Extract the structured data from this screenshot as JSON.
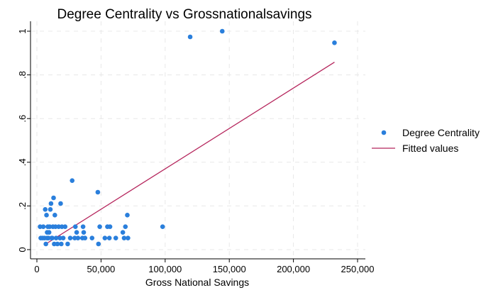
{
  "chart_data": {
    "type": "scatter",
    "title": "Degree Centrality vs Grossnationalsavings",
    "xlabel": "Gross National Savings",
    "ylabel": "",
    "xlim": [
      0,
      255000
    ],
    "ylim": [
      0,
      1.0
    ],
    "x_ticks": [
      0,
      50000,
      100000,
      150000,
      200000,
      250000
    ],
    "x_tick_labels": [
      "0",
      "50,000",
      "100,000",
      "150,000",
      "200,000",
      "250,000"
    ],
    "y_ticks": [
      0,
      0.2,
      0.4,
      0.6,
      0.8,
      1.0
    ],
    "y_tick_labels": [
      "0",
      ".2",
      ".4",
      ".6",
      ".8",
      "1"
    ],
    "grid": true,
    "legend_position": "right",
    "colors": {
      "points": "#2a7fdc",
      "fit_line": "#b5255c"
    },
    "series": [
      {
        "name": "Degree Centrality",
        "kind": "scatter",
        "points": [
          [
            2500,
            0.105
          ],
          [
            3000,
            0.053
          ],
          [
            4500,
            0.053
          ],
          [
            5000,
            0.105
          ],
          [
            6000,
            0.053
          ],
          [
            6500,
            0.184
          ],
          [
            7000,
            0.026
          ],
          [
            7500,
            0.158
          ],
          [
            8000,
            0.079
          ],
          [
            8000,
            0.053
          ],
          [
            8500,
            0.105
          ],
          [
            9000,
            0.053
          ],
          [
            9500,
            0.079
          ],
          [
            10000,
            0.105
          ],
          [
            10500,
            0.184
          ],
          [
            11000,
            0.211
          ],
          [
            11500,
            0.053
          ],
          [
            12000,
            0.053
          ],
          [
            12500,
            0.105
          ],
          [
            13000,
            0.237
          ],
          [
            13500,
            0.026
          ],
          [
            14000,
            0.158
          ],
          [
            14500,
            0.105
          ],
          [
            15000,
            0.053
          ],
          [
            16000,
            0.026
          ],
          [
            17000,
            0.105
          ],
          [
            18000,
            0.053
          ],
          [
            18500,
            0.211
          ],
          [
            19000,
            0.026
          ],
          [
            19500,
            0.105
          ],
          [
            20500,
            0.053
          ],
          [
            22000,
            0.105
          ],
          [
            24000,
            0.026
          ],
          [
            26000,
            0.053
          ],
          [
            27500,
            0.316
          ],
          [
            29500,
            0.053
          ],
          [
            30000,
            0.105
          ],
          [
            31000,
            0.079
          ],
          [
            32000,
            0.053
          ],
          [
            35500,
            0.053
          ],
          [
            36000,
            0.105
          ],
          [
            36500,
            0.079
          ],
          [
            37500,
            0.053
          ],
          [
            43000,
            0.053
          ],
          [
            47500,
            0.263
          ],
          [
            48000,
            0.026
          ],
          [
            49000,
            0.105
          ],
          [
            53000,
            0.053
          ],
          [
            55000,
            0.105
          ],
          [
            56500,
            0.053
          ],
          [
            57000,
            0.105
          ],
          [
            61500,
            0.053
          ],
          [
            67000,
            0.079
          ],
          [
            68000,
            0.053
          ],
          [
            69000,
            0.105
          ],
          [
            70500,
            0.158
          ],
          [
            71000,
            0.053
          ],
          [
            98000,
            0.105
          ],
          [
            119500,
            0.974
          ],
          [
            144500,
            1.0
          ],
          [
            232000,
            0.947
          ]
        ]
      },
      {
        "name": "Fitted values",
        "kind": "line",
        "points": [
          [
            7000,
            0.026
          ],
          [
            232000,
            0.858
          ]
        ]
      }
    ]
  }
}
